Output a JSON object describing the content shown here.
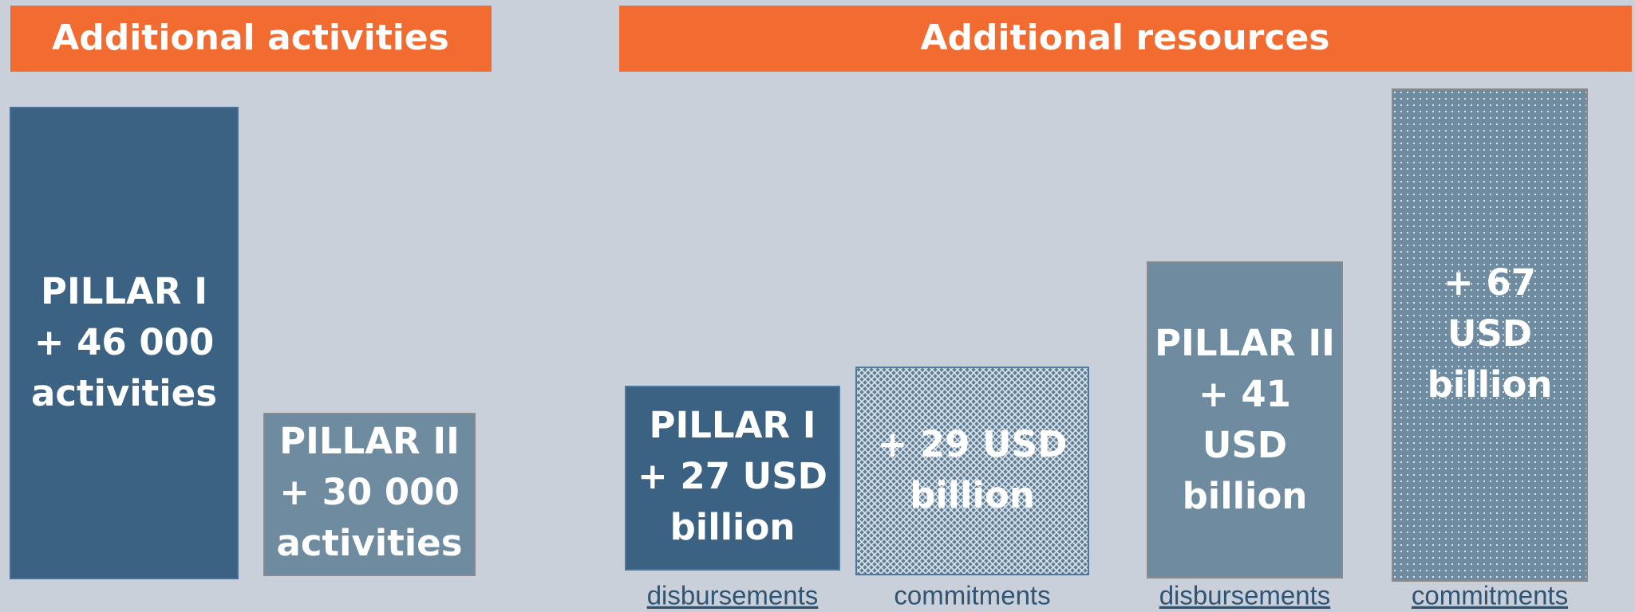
{
  "headers": [
    "Additional activities",
    "Additional resources"
  ],
  "boxes": [
    {
      "lines": [
        "PILLAR I",
        "+ 46 000",
        "activities"
      ]
    },
    {
      "lines": [
        "PILLAR II",
        "+ 30 000",
        "activities"
      ]
    },
    {
      "lines": [
        "PILLAR I",
        "+ 27  USD",
        "billion"
      ],
      "caption": "disbursements"
    },
    {
      "lines": [
        "+ 29  USD",
        "billion"
      ],
      "caption": "commitments"
    },
    {
      "lines": [
        "PILLAR II",
        "+ 41",
        "USD",
        "billion"
      ],
      "caption": "disbursements"
    },
    {
      "lines": [
        "+ 67",
        "USD",
        "billion"
      ],
      "caption": "commitments"
    }
  ]
}
